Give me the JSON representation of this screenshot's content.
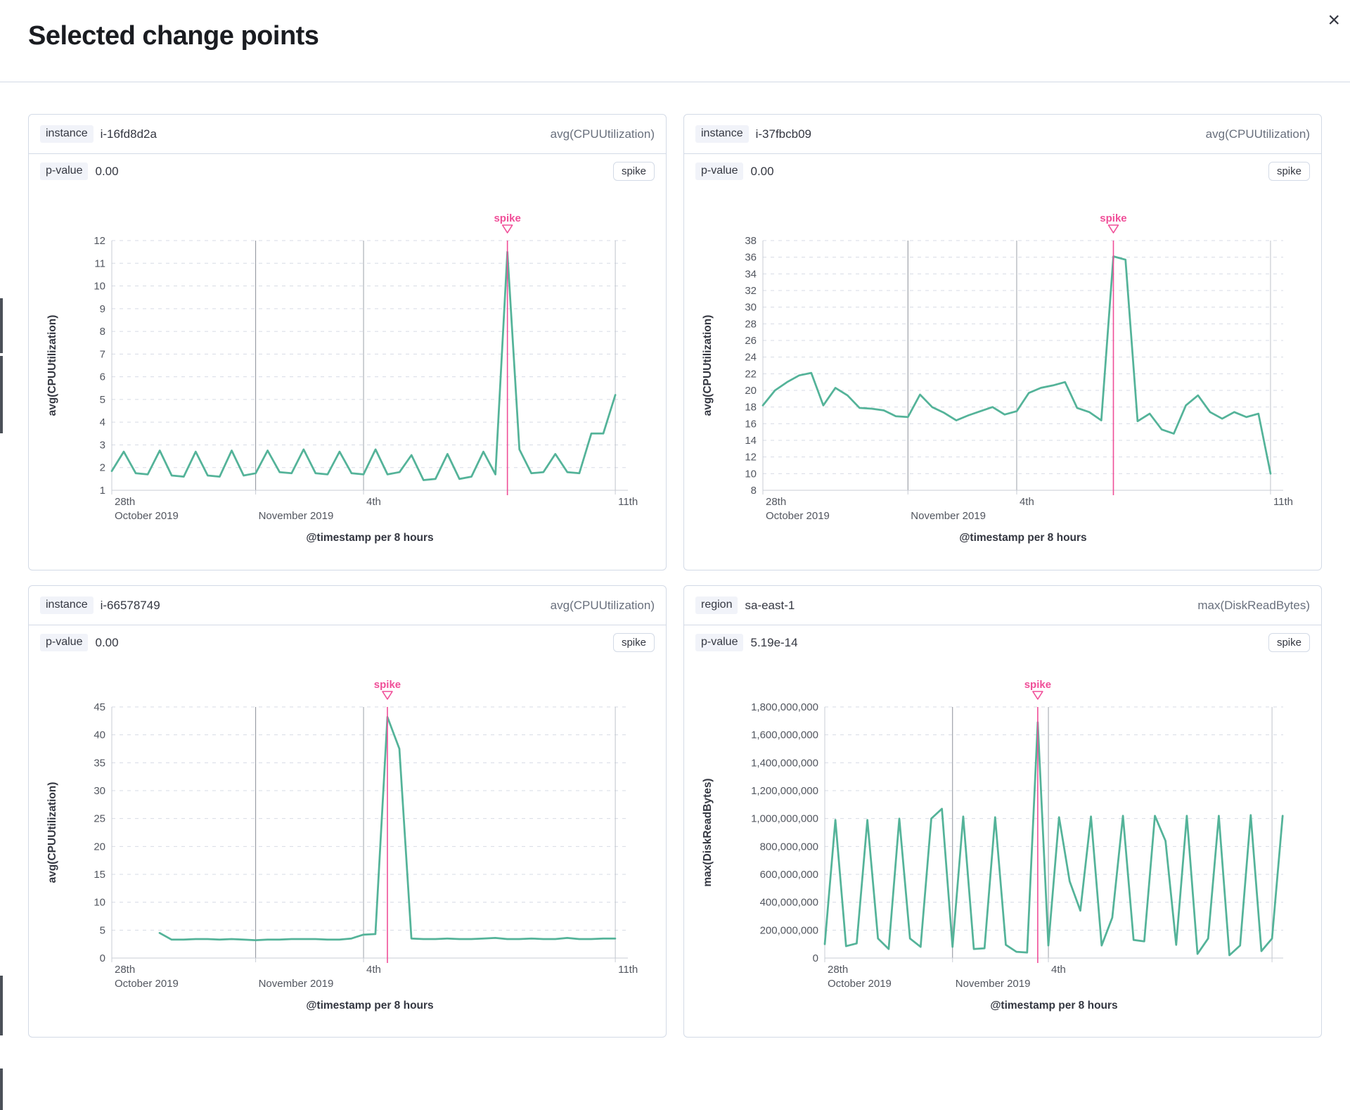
{
  "modal": {
    "title": "Selected change points",
    "close_icon": "×"
  },
  "theme": {
    "line_color": "#54b399",
    "accent_pink": "#f04e98",
    "grid_color": "#d7dbe5",
    "axis_color": "#c9cdd5"
  },
  "panels": [
    {
      "group_field": "instance",
      "group_value": "i-16fd8d2a",
      "metric": "avg(CPUUtilization)",
      "p_label": "p-value",
      "p_value": "0.00",
      "change_type": "spike"
    },
    {
      "group_field": "instance",
      "group_value": "i-37fbcb09",
      "metric": "avg(CPUUtilization)",
      "p_label": "p-value",
      "p_value": "0.00",
      "change_type": "spike"
    },
    {
      "group_field": "instance",
      "group_value": "i-66578749",
      "metric": "avg(CPUUtilization)",
      "p_label": "p-value",
      "p_value": "0.00",
      "change_type": "spike"
    },
    {
      "group_field": "region",
      "group_value": "sa-east-1",
      "metric": "max(DiskReadBytes)",
      "p_label": "p-value",
      "p_value": "5.19e-14",
      "change_type": "spike"
    }
  ],
  "chart_data": [
    {
      "type": "line",
      "xlabel": "@timestamp per 8 hours",
      "ylabel": "avg(CPUUtilization)",
      "ylim": [
        1,
        12
      ],
      "y_tick_values": [
        12,
        11,
        10,
        9,
        8,
        7,
        6,
        5,
        4,
        3,
        2,
        1
      ],
      "y_tick_labels": [
        "12",
        "11",
        "10",
        "9",
        "8",
        "7",
        "6",
        "5",
        "4",
        "3",
        "2",
        "1"
      ],
      "x_ticks": [
        {
          "day": 0,
          "label": "28th",
          "sub": "October 2019"
        },
        {
          "day": 4,
          "label": "",
          "sub": "November 2019"
        },
        {
          "day": 7,
          "label": "4th",
          "sub": ""
        },
        {
          "day": 14,
          "label": "11th",
          "sub": ""
        }
      ],
      "start_day": 0,
      "interval_hours": 8,
      "values": [
        1.85,
        2.7,
        1.75,
        1.7,
        2.75,
        1.65,
        1.6,
        2.7,
        1.65,
        1.6,
        2.75,
        1.65,
        1.75,
        2.75,
        1.8,
        1.75,
        2.8,
        1.75,
        1.7,
        2.7,
        1.75,
        1.7,
        2.8,
        1.7,
        1.8,
        2.55,
        1.45,
        1.5,
        2.6,
        1.5,
        1.6,
        2.7,
        1.7,
        11.5,
        2.8,
        1.75,
        1.8,
        2.6,
        1.8,
        1.75,
        3.5,
        3.5,
        5.2
      ],
      "spike_index": 33,
      "annotation": "spike"
    },
    {
      "type": "line",
      "xlabel": "@timestamp per 8 hours",
      "ylabel": "avg(CPUUtilization)",
      "ylim": [
        8,
        38
      ],
      "y_tick_values": [
        38,
        36,
        34,
        32,
        30,
        28,
        26,
        24,
        22,
        20,
        18,
        16,
        14,
        12,
        10,
        8
      ],
      "y_tick_labels": [
        "38",
        "36",
        "34",
        "32",
        "30",
        "28",
        "26",
        "24",
        "22",
        "20",
        "18",
        "16",
        "14",
        "12",
        "10",
        "8"
      ],
      "x_ticks": [
        {
          "day": 0,
          "label": "28th",
          "sub": "October 2019"
        },
        {
          "day": 4,
          "label": "",
          "sub": "November 2019"
        },
        {
          "day": 7,
          "label": "4th",
          "sub": ""
        },
        {
          "day": 14,
          "label": "11th",
          "sub": ""
        }
      ],
      "start_day": 0,
      "interval_hours": 8,
      "values": [
        18.2,
        20.0,
        21.0,
        21.8,
        22.1,
        18.2,
        20.3,
        19.4,
        17.9,
        17.8,
        17.6,
        16.9,
        16.8,
        19.5,
        18.0,
        17.3,
        16.4,
        17.0,
        17.5,
        18.0,
        17.1,
        17.5,
        19.7,
        20.3,
        20.6,
        21.0,
        17.9,
        17.4,
        16.4,
        36.1,
        35.7,
        16.3,
        17.2,
        15.3,
        14.8,
        18.2,
        19.4,
        17.4,
        16.6,
        17.4,
        16.8,
        17.2,
        10.0
      ],
      "spike_index": 29,
      "annotation": "spike"
    },
    {
      "type": "line",
      "xlabel": "@timestamp per 8 hours",
      "ylabel": "avg(CPUUtilization)",
      "ylim": [
        0,
        45
      ],
      "y_tick_values": [
        45,
        40,
        35,
        30,
        25,
        20,
        15,
        10,
        5,
        0
      ],
      "y_tick_labels": [
        "45",
        "40",
        "35",
        "30",
        "25",
        "20",
        "15",
        "10",
        "5",
        "0"
      ],
      "x_ticks": [
        {
          "day": 0,
          "label": "28th",
          "sub": "October 2019"
        },
        {
          "day": 4,
          "label": "",
          "sub": "November 2019"
        },
        {
          "day": 7,
          "label": "4th",
          "sub": ""
        },
        {
          "day": 14,
          "label": "11th",
          "sub": ""
        }
      ],
      "start_day": 1.33,
      "interval_hours": 8,
      "values": [
        4.5,
        3.3,
        3.3,
        3.4,
        3.4,
        3.3,
        3.4,
        3.3,
        3.2,
        3.3,
        3.3,
        3.4,
        3.4,
        3.4,
        3.3,
        3.3,
        3.5,
        4.2,
        4.3,
        43.2,
        37.5,
        3.5,
        3.4,
        3.4,
        3.5,
        3.4,
        3.4,
        3.5,
        3.6,
        3.4,
        3.4,
        3.5,
        3.4,
        3.4,
        3.6,
        3.4,
        3.4,
        3.5,
        3.5
      ],
      "spike_index": 19,
      "annotation": "spike"
    },
    {
      "type": "line",
      "xlabel": "@timestamp per 8 hours",
      "ylabel": "max(DiskReadBytes)",
      "ylim": [
        0,
        1800000000
      ],
      "y_tick_values": [
        1800000000,
        1600000000,
        1400000000,
        1200000000,
        1000000000,
        800000000,
        600000000,
        400000000,
        200000000,
        0
      ],
      "y_tick_labels": [
        "1,800,000,000",
        "1,600,000,000",
        "1,400,000,000",
        "1,200,000,000",
        "1,000,000,000",
        "800,000,000",
        "600,000,000",
        "400,000,000",
        "200,000,000",
        "0"
      ],
      "x_ticks": [
        {
          "day": 0,
          "label": "28th",
          "sub": "October 2019"
        },
        {
          "day": 4,
          "label": "",
          "sub": "November 2019"
        },
        {
          "day": 7,
          "label": "4th",
          "sub": ""
        },
        {
          "day": 14,
          "label": "",
          "sub": ""
        }
      ],
      "start_day": 0,
      "interval_hours": 8,
      "values": [
        100000000,
        990000000,
        85000000,
        105000000,
        990000000,
        140000000,
        65000000,
        1000000000,
        140000000,
        80000000,
        1000000000,
        1070000000,
        80000000,
        1015000000,
        65000000,
        70000000,
        1010000000,
        95000000,
        45000000,
        40000000,
        1690000000,
        90000000,
        1010000000,
        550000000,
        340000000,
        1015000000,
        90000000,
        290000000,
        1020000000,
        130000000,
        120000000,
        1020000000,
        840000000,
        95000000,
        1020000000,
        30000000,
        140000000,
        1020000000,
        20000000,
        90000000,
        1025000000,
        50000000,
        140000000,
        1020000000
      ],
      "spike_index": 20,
      "annotation": "spike"
    }
  ]
}
